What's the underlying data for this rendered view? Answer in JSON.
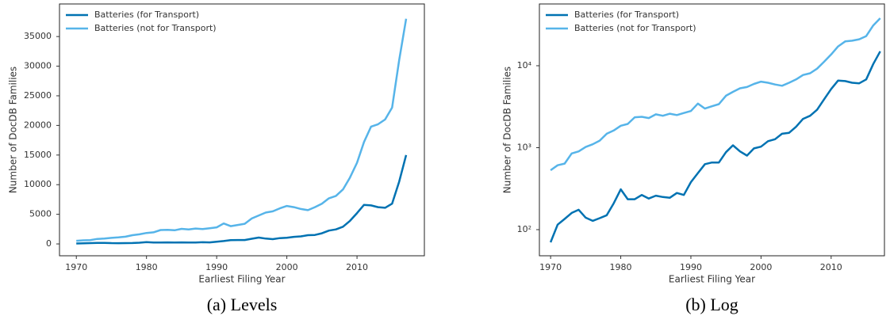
{
  "chart_data": [
    {
      "type": "line",
      "caption": "(a) Levels",
      "xlabel": "Earliest Filing Year",
      "ylabel": "Number of DocDB Families",
      "log": false,
      "legend": "upper left",
      "x": [
        1970,
        1971,
        1972,
        1973,
        1974,
        1975,
        1976,
        1977,
        1978,
        1979,
        1980,
        1981,
        1982,
        1983,
        1984,
        1985,
        1986,
        1987,
        1988,
        1989,
        1990,
        1991,
        1992,
        1993,
        1994,
        1995,
        1996,
        1997,
        1998,
        1999,
        2000,
        2001,
        2002,
        2003,
        2004,
        2005,
        2006,
        2007,
        2008,
        2009,
        2010,
        2011,
        2012,
        2013,
        2014,
        2015,
        2016,
        2017
      ],
      "series": [
        {
          "name": "Batteries (for Transport)",
          "color": "#0072b2",
          "values": [
            70,
            115,
            135,
            160,
            175,
            140,
            128,
            138,
            150,
            210,
            310,
            235,
            235,
            265,
            240,
            260,
            250,
            245,
            280,
            265,
            380,
            490,
            630,
            660,
            660,
            880,
            1070,
            900,
            800,
            980,
            1030,
            1200,
            1270,
            1480,
            1520,
            1800,
            2250,
            2450,
            2900,
            3900,
            5200,
            6600,
            6500,
            6200,
            6100,
            6800,
            10500,
            15000
          ]
        },
        {
          "name": "Batteries (not for Transport)",
          "color": "#56b4e9",
          "values": [
            530,
            610,
            640,
            850,
            900,
            1020,
            1100,
            1220,
            1480,
            1620,
            1850,
            1950,
            2350,
            2380,
            2300,
            2550,
            2450,
            2600,
            2500,
            2650,
            2800,
            3450,
            3000,
            3200,
            3400,
            4300,
            4800,
            5300,
            5500,
            6000,
            6400,
            6200,
            5900,
            5700,
            6200,
            6800,
            7700,
            8100,
            9200,
            11200,
            13700,
            17200,
            19800,
            20200,
            21000,
            23000,
            31000,
            38000
          ]
        }
      ],
      "xlim": [
        1967.6,
        2019.6
      ],
      "xticks": [
        1970,
        1980,
        1990,
        2000,
        2010
      ],
      "ylim": [
        -2000,
        40500
      ],
      "yticks": [
        0,
        5000,
        10000,
        15000,
        20000,
        25000,
        30000,
        35000
      ]
    },
    {
      "type": "line",
      "caption": "(b) Log",
      "xlabel": "Earliest Filing Year",
      "ylabel": "Number of DocDB Families",
      "log": true,
      "legend": "upper left",
      "x": [
        1970,
        1971,
        1972,
        1973,
        1974,
        1975,
        1976,
        1977,
        1978,
        1979,
        1980,
        1981,
        1982,
        1983,
        1984,
        1985,
        1986,
        1987,
        1988,
        1989,
        1990,
        1991,
        1992,
        1993,
        1994,
        1995,
        1996,
        1997,
        1998,
        1999,
        2000,
        2001,
        2002,
        2003,
        2004,
        2005,
        2006,
        2007,
        2008,
        2009,
        2010,
        2011,
        2012,
        2013,
        2014,
        2015,
        2016,
        2017
      ],
      "series": [
        {
          "name": "Batteries (for Transport)",
          "color": "#0072b2",
          "values": [
            70,
            115,
            135,
            160,
            175,
            140,
            128,
            138,
            150,
            210,
            310,
            235,
            235,
            265,
            240,
            260,
            250,
            245,
            280,
            265,
            380,
            490,
            630,
            660,
            660,
            880,
            1070,
            900,
            800,
            980,
            1030,
            1200,
            1270,
            1480,
            1520,
            1800,
            2250,
            2450,
            2900,
            3900,
            5200,
            6600,
            6500,
            6200,
            6100,
            6800,
            10500,
            15000
          ]
        },
        {
          "name": "Batteries (not for Transport)",
          "color": "#56b4e9",
          "values": [
            530,
            610,
            640,
            850,
            900,
            1020,
            1100,
            1220,
            1480,
            1620,
            1850,
            1950,
            2350,
            2380,
            2300,
            2550,
            2450,
            2600,
            2500,
            2650,
            2800,
            3450,
            3000,
            3200,
            3400,
            4300,
            4800,
            5300,
            5500,
            6000,
            6400,
            6200,
            5900,
            5700,
            6200,
            6800,
            7700,
            8100,
            9200,
            11200,
            13700,
            17200,
            19800,
            20200,
            21000,
            23000,
            31000,
            38000
          ]
        }
      ],
      "xlim": [
        1968.4,
        2017.6
      ],
      "xticks": [
        1970,
        1980,
        1990,
        2000,
        2010
      ],
      "ylim": [
        48,
        56700
      ],
      "yticks": [
        {
          "value": 100,
          "label": "10²"
        },
        {
          "value": 1000,
          "label": "10³"
        },
        {
          "value": 10000,
          "label": "10⁴"
        }
      ]
    }
  ]
}
